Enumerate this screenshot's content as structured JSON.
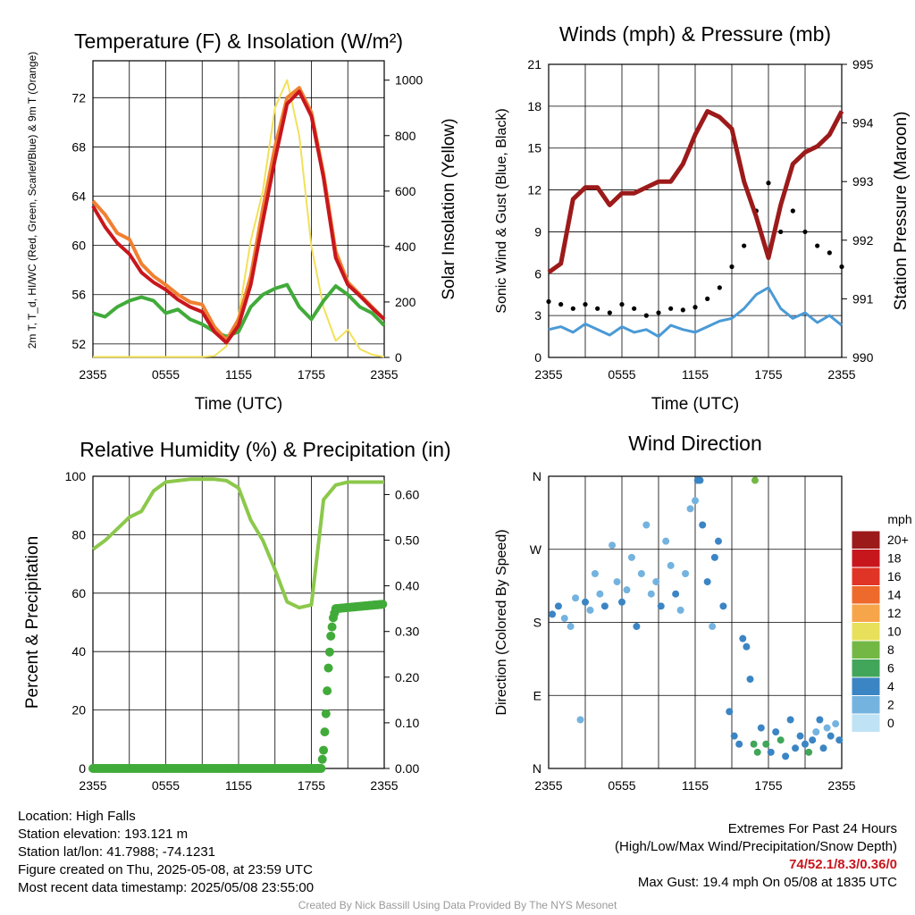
{
  "chart_data": [
    {
      "type": "line",
      "title": "Temperature (F) & Insolation (W/m²)",
      "xlabel": "Time (UTC)",
      "ylabel_left": "2m T, T_d, HI/WC (Red, Green, Scarlet/Blue) & 9m T (Orange)",
      "ylabel_right": "Solar Insolation (Yellow)",
      "x_ticks": [
        "2355",
        "0555",
        "1155",
        "1755",
        "2355"
      ],
      "y_ticks_left": [
        "52",
        "56",
        "60",
        "64",
        "68",
        "72"
      ],
      "y_ticks_right": [
        "0",
        "200",
        "400",
        "600",
        "800",
        "1000"
      ],
      "ylim_left": [
        50.9,
        75
      ],
      "ylim_right": [
        0,
        1070
      ],
      "grid": true,
      "x_hours": [
        0,
        1,
        2,
        3,
        4,
        5,
        6,
        7,
        8,
        9,
        10,
        11,
        12,
        13,
        14,
        15,
        16,
        17,
        18,
        19,
        20,
        21,
        22,
        23,
        24
      ],
      "series": [
        {
          "name": "2m T (Red)",
          "color": "#c8161d",
          "axis": "left",
          "values": [
            63.2,
            61.5,
            60.2,
            59.3,
            57.8,
            57.0,
            56.4,
            55.6,
            55.0,
            54.6,
            53.0,
            52.1,
            53.5,
            56.8,
            62.0,
            67.0,
            71.5,
            72.5,
            70.5,
            65.5,
            59.0,
            56.8,
            55.9,
            54.9,
            54.0
          ]
        },
        {
          "name": "9m T (Orange)",
          "color": "#f08030",
          "axis": "left",
          "values": [
            63.6,
            62.5,
            61.0,
            60.5,
            58.5,
            57.5,
            56.8,
            56.0,
            55.4,
            55.2,
            53.4,
            52.3,
            54.0,
            57.5,
            63.0,
            68.0,
            72.0,
            72.8,
            70.8,
            65.8,
            59.5,
            57.0,
            56.0,
            55.0,
            54.0
          ]
        },
        {
          "name": "Dewpoint (Green)",
          "color": "#41ab3a",
          "axis": "left",
          "values": [
            54.5,
            54.2,
            55.0,
            55.5,
            55.8,
            55.5,
            54.5,
            54.8,
            54.0,
            53.6,
            53.0,
            52.6,
            53.0,
            55.0,
            56.0,
            56.5,
            56.8,
            55.0,
            54.0,
            55.5,
            56.7,
            56.0,
            55.0,
            54.5,
            53.5
          ]
        },
        {
          "name": "Solar Insolation (Yellow)",
          "color": "#f2e15a",
          "axis": "right",
          "values": [
            2,
            2,
            2,
            2,
            2,
            2,
            2,
            2,
            2,
            2,
            5,
            40,
            150,
            420,
            600,
            900,
            1000,
            800,
            400,
            180,
            60,
            100,
            30,
            10,
            2
          ]
        }
      ]
    },
    {
      "type": "line",
      "title": "Winds (mph) & Pressure (mb)",
      "xlabel": "Time (UTC)",
      "ylabel_left": "Sonic Wind & Gust (Blue, Black)",
      "ylabel_right": "Station Pressure (Maroon)",
      "x_ticks": [
        "2355",
        "0555",
        "1155",
        "1755",
        "2355"
      ],
      "y_ticks_left": [
        "0",
        "3",
        "6",
        "9",
        "12",
        "15",
        "18",
        "21"
      ],
      "y_ticks_right": [
        "990",
        "991",
        "992",
        "993",
        "994",
        "995"
      ],
      "ylim_left": [
        0,
        21
      ],
      "ylim_right": [
        990,
        995
      ],
      "grid": true,
      "x_hours": [
        0,
        1,
        2,
        3,
        4,
        5,
        6,
        7,
        8,
        9,
        10,
        11,
        12,
        13,
        14,
        15,
        16,
        17,
        18,
        19,
        20,
        21,
        22,
        23,
        24
      ],
      "series": [
        {
          "name": "Sonic Wind (Blue)",
          "color": "#4a9ad6",
          "axis": "left",
          "values": [
            2.0,
            2.2,
            1.8,
            2.4,
            2.0,
            1.6,
            2.2,
            1.8,
            2.0,
            1.5,
            2.3,
            2.0,
            1.8,
            2.2,
            2.6,
            2.8,
            3.5,
            4.5,
            5.0,
            3.5,
            2.8,
            3.2,
            2.5,
            3.0,
            2.3
          ]
        },
        {
          "name": "Gust (Black)",
          "color": "#000000",
          "axis": "left",
          "values": [
            4.0,
            3.8,
            3.5,
            3.8,
            3.5,
            3.2,
            3.8,
            3.5,
            3.0,
            3.2,
            3.5,
            3.4,
            3.6,
            4.2,
            5.0,
            6.5,
            8.0,
            10.5,
            12.5,
            9.0,
            10.5,
            9.0,
            8.0,
            7.5,
            6.5
          ]
        },
        {
          "name": "Station Pressure (Maroon)",
          "color": "#9c1a1a",
          "axis": "right",
          "values": [
            991.45,
            991.6,
            992.7,
            992.9,
            992.9,
            992.6,
            992.8,
            992.8,
            992.9,
            993.0,
            993.0,
            993.3,
            993.8,
            994.2,
            994.1,
            993.9,
            993.0,
            992.4,
            991.7,
            992.6,
            993.3,
            993.5,
            993.6,
            993.8,
            994.2
          ]
        }
      ]
    },
    {
      "type": "line",
      "title": "Relative Humidity (%) & Precipitation (in)",
      "xlabel": "",
      "ylabel_left": "Percent & Precipitation",
      "x_ticks": [
        "2355",
        "0555",
        "1155",
        "1755",
        "2355"
      ],
      "y_ticks_left": [
        "0",
        "20",
        "40",
        "60",
        "80",
        "100"
      ],
      "y_ticks_right": [
        "0.00",
        "0.10",
        "0.20",
        "0.30",
        "0.40",
        "0.50",
        "0.60"
      ],
      "ylim_left": [
        0,
        100
      ],
      "ylim_right": [
        0,
        0.64
      ],
      "grid": true,
      "x_hours": [
        0,
        1,
        2,
        3,
        4,
        5,
        6,
        7,
        8,
        9,
        10,
        11,
        12,
        13,
        14,
        15,
        16,
        17,
        18,
        19,
        20,
        21,
        22,
        23,
        24
      ],
      "series": [
        {
          "name": "Relative Humidity",
          "color": "#8cc84b",
          "axis": "left",
          "values": [
            75,
            78,
            82,
            86,
            88,
            95,
            98,
            98.5,
            99,
            99,
            99,
            98.5,
            96,
            85,
            78,
            68,
            57,
            55,
            56,
            92,
            97,
            98,
            98,
            98,
            98
          ]
        },
        {
          "name": "Precipitation",
          "color": "#41ab3a",
          "axis": "right",
          "points": [
            [
              0,
              0
            ],
            [
              18.8,
              0
            ],
            [
              19.0,
              0.04
            ],
            [
              19.2,
              0.12
            ],
            [
              19.4,
              0.22
            ],
            [
              19.6,
              0.29
            ],
            [
              19.8,
              0.33
            ],
            [
              20.0,
              0.35
            ],
            [
              24,
              0.36
            ]
          ]
        }
      ]
    },
    {
      "type": "scatter",
      "title": "Wind Direction",
      "ylabel": "Direction (Colored By Speed)",
      "x_ticks": [
        "2355",
        "0555",
        "1155",
        "1755",
        "2355"
      ],
      "y_ticks": [
        "N",
        "E",
        "S",
        "W",
        "N"
      ],
      "ylim": [
        0,
        360
      ],
      "grid": true,
      "legend": {
        "title": "mph",
        "placement": "right",
        "labels": [
          "20+",
          "18",
          "16",
          "14",
          "12",
          "10",
          "8",
          "6",
          "4",
          "2",
          "0"
        ],
        "colors": [
          "#9c1a1a",
          "#c8161d",
          "#e03526",
          "#ee6a2c",
          "#f7a54a",
          "#e8e05a",
          "#73b844",
          "#41a65a",
          "#3b85c4",
          "#74b3df",
          "#bfe3f5"
        ]
      },
      "points": [
        [
          0.3,
          190,
          3
        ],
        [
          0.8,
          200,
          3
        ],
        [
          1.3,
          185,
          2
        ],
        [
          1.8,
          175,
          2
        ],
        [
          2.2,
          210,
          1
        ],
        [
          2.6,
          60,
          2
        ],
        [
          3.0,
          205,
          3
        ],
        [
          3.4,
          195,
          2
        ],
        [
          3.8,
          240,
          2
        ],
        [
          4.2,
          215,
          2
        ],
        [
          4.6,
          200,
          3
        ],
        [
          5.2,
          275,
          1
        ],
        [
          5.6,
          230,
          2
        ],
        [
          6.0,
          205,
          3
        ],
        [
          6.4,
          220,
          2
        ],
        [
          6.8,
          260,
          2
        ],
        [
          7.2,
          175,
          3
        ],
        [
          7.6,
          240,
          2
        ],
        [
          8.0,
          300,
          1
        ],
        [
          8.4,
          215,
          2
        ],
        [
          8.8,
          230,
          2
        ],
        [
          9.2,
          200,
          3
        ],
        [
          9.6,
          280,
          2
        ],
        [
          10.0,
          250,
          2
        ],
        [
          10.4,
          215,
          3
        ],
        [
          10.8,
          195,
          1
        ],
        [
          11.2,
          240,
          2
        ],
        [
          11.6,
          320,
          2
        ],
        [
          12.0,
          330,
          2
        ],
        [
          12.2,
          355,
          3
        ],
        [
          12.6,
          300,
          3
        ],
        [
          13.0,
          230,
          3
        ],
        [
          13.4,
          175,
          2
        ],
        [
          13.6,
          260,
          3
        ],
        [
          13.9,
          280,
          4
        ],
        [
          14.3,
          200,
          3
        ],
        [
          14.8,
          70,
          3
        ],
        [
          15.2,
          40,
          4
        ],
        [
          15.6,
          30,
          3
        ],
        [
          15.9,
          160,
          3
        ],
        [
          16.2,
          150,
          4
        ],
        [
          16.5,
          110,
          4
        ],
        [
          16.8,
          30,
          6
        ],
        [
          17.1,
          20,
          6
        ],
        [
          17.4,
          50,
          4
        ],
        [
          17.8,
          30,
          5
        ],
        [
          18.2,
          20,
          4
        ],
        [
          18.6,
          45,
          4
        ],
        [
          19.0,
          35,
          5
        ],
        [
          19.4,
          15,
          4
        ],
        [
          19.8,
          60,
          3
        ],
        [
          20.2,
          25,
          4
        ],
        [
          20.6,
          40,
          3
        ],
        [
          21.0,
          30,
          4
        ],
        [
          21.3,
          20,
          6
        ],
        [
          21.6,
          35,
          3
        ],
        [
          21.9,
          45,
          2
        ],
        [
          22.2,
          60,
          3
        ],
        [
          22.5,
          25,
          4
        ],
        [
          22.8,
          50,
          2
        ],
        [
          23.1,
          40,
          3
        ],
        [
          23.5,
          55,
          2
        ],
        [
          23.8,
          35,
          3
        ],
        [
          16.9,
          355,
          7
        ],
        [
          12.4,
          355,
          3
        ]
      ]
    }
  ],
  "info_left": [
    "Location: High Falls",
    "Station elevation: 193.121 m",
    "Station lat/lon: 41.7988; -74.1231",
    "Figure created on Thu, 2025-05-08, at 23:59 UTC",
    "Most recent data timestamp: 2025/05/08 23:55:00"
  ],
  "extremes_title": "Extremes For Past 24 Hours",
  "extremes_subtitle": "(High/Low/Max Wind/Precipitation/Snow Depth)",
  "extremes_values": "74/52.1/8.3/0.36/0",
  "max_gust": "Max Gust: 19.4 mph On 05/08 at 1835 UTC",
  "credit": "Created By Nick Bassill Using Data Provided By The NYS Mesonet"
}
